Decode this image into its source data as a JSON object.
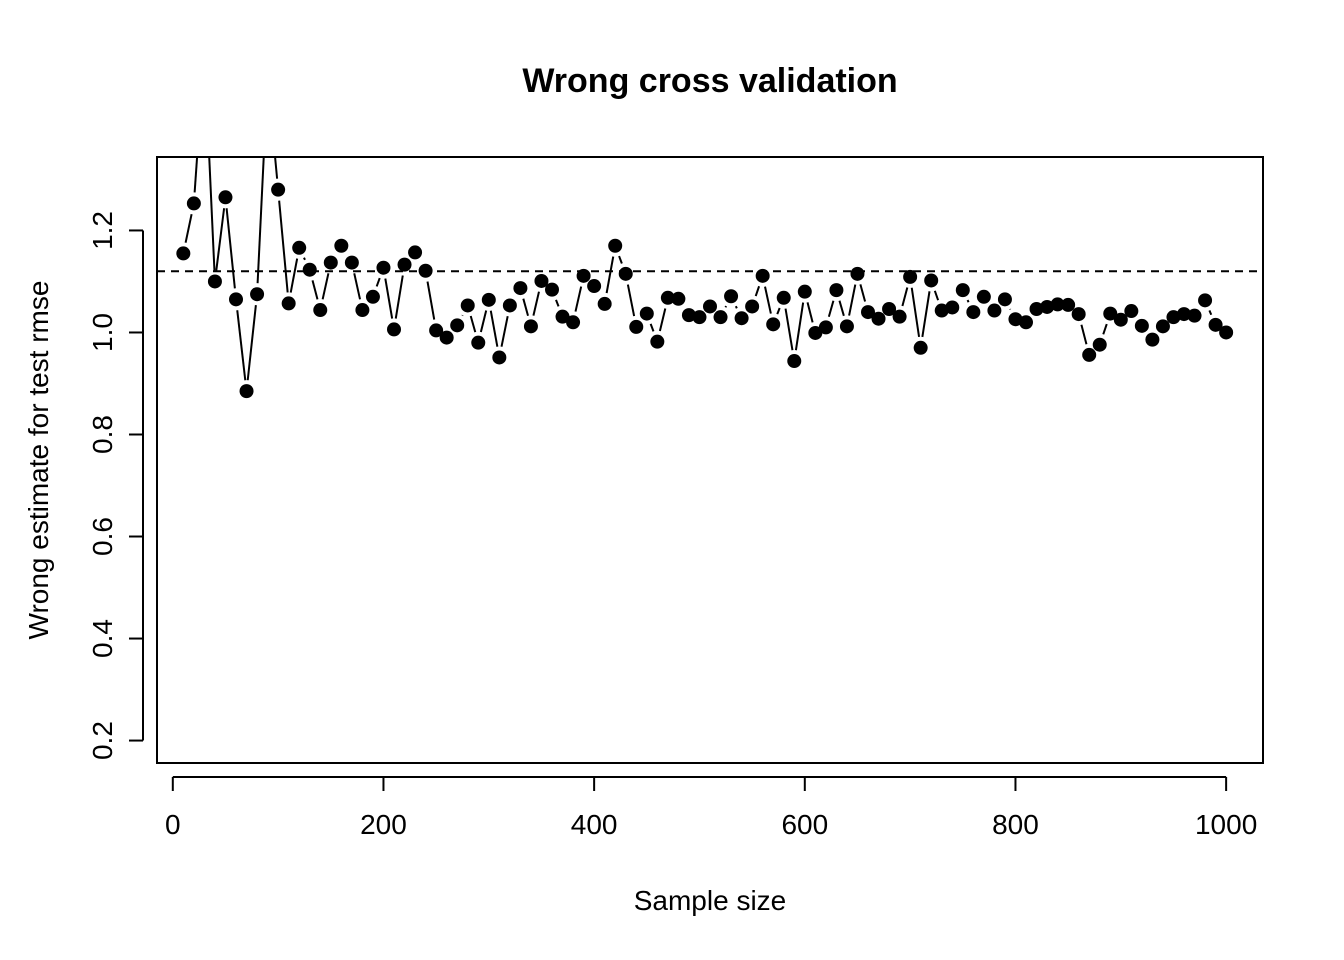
{
  "chart_data": {
    "type": "line",
    "title": "Wrong cross validation",
    "xlabel": "Sample size",
    "ylabel": "Wrong estimate for test rmse",
    "xlim": [
      -15,
      1035
    ],
    "ylim": [
      0.156,
      1.344
    ],
    "xticks": [
      0,
      200,
      400,
      600,
      800,
      1000
    ],
    "yticks": [
      0.2,
      0.4,
      0.6,
      0.8,
      1.0,
      1.2
    ],
    "xtick_labels": [
      "0",
      "200",
      "400",
      "600",
      "800",
      "1000"
    ],
    "ytick_labels": [
      "0.2",
      "0.4",
      "0.6",
      "0.8",
      "1.0",
      "1.2"
    ],
    "reference_line": {
      "y": 1.12,
      "style": "dashed"
    },
    "grid": false,
    "series": [
      {
        "style": "points-and-lines",
        "x": [
          10,
          20,
          30,
          40,
          50,
          60,
          70,
          80,
          90,
          100,
          110,
          120,
          130,
          140,
          150,
          160,
          170,
          180,
          190,
          200,
          210,
          220,
          230,
          240,
          250,
          260,
          270,
          280,
          290,
          300,
          310,
          320,
          330,
          340,
          350,
          360,
          370,
          380,
          390,
          400,
          410,
          420,
          430,
          440,
          450,
          460,
          470,
          480,
          490,
          500,
          510,
          520,
          530,
          540,
          550,
          560,
          570,
          580,
          590,
          600,
          610,
          620,
          630,
          640,
          650,
          660,
          670,
          680,
          690,
          700,
          710,
          720,
          730,
          740,
          750,
          760,
          770,
          780,
          790,
          800,
          810,
          820,
          830,
          840,
          850,
          860,
          870,
          880,
          890,
          900,
          910,
          920,
          930,
          940,
          950,
          960,
          970,
          980,
          990,
          1000
        ],
        "y": [
          1.155,
          1.253,
          1.55,
          1.1,
          1.265,
          1.065,
          0.885,
          1.075,
          1.5,
          1.28,
          1.057,
          1.166,
          1.123,
          1.044,
          1.137,
          1.17,
          1.137,
          1.044,
          1.07,
          1.127,
          1.006,
          1.133,
          1.157,
          1.121,
          1.004,
          0.99,
          1.014,
          1.053,
          0.98,
          1.064,
          0.951,
          1.053,
          1.087,
          1.012,
          1.101,
          1.084,
          1.031,
          1.02,
          1.111,
          1.091,
          1.056,
          1.17,
          1.115,
          1.011,
          1.037,
          0.982,
          1.068,
          1.066,
          1.034,
          1.03,
          1.051,
          1.03,
          1.071,
          1.028,
          1.051,
          1.111,
          1.016,
          1.068,
          0.944,
          1.08,
          0.999,
          1.01,
          1.083,
          1.012,
          1.115,
          1.04,
          1.027,
          1.046,
          1.031,
          1.109,
          0.97,
          1.102,
          1.043,
          1.049,
          1.083,
          1.04,
          1.07,
          1.043,
          1.065,
          1.026,
          1.02,
          1.046,
          1.05,
          1.055,
          1.054,
          1.036,
          0.956,
          0.976,
          1.037,
          1.025,
          1.042,
          1.013,
          0.986,
          1.012,
          1.03,
          1.036,
          1.033,
          1.063,
          1.015,
          1.0
        ]
      }
    ]
  }
}
